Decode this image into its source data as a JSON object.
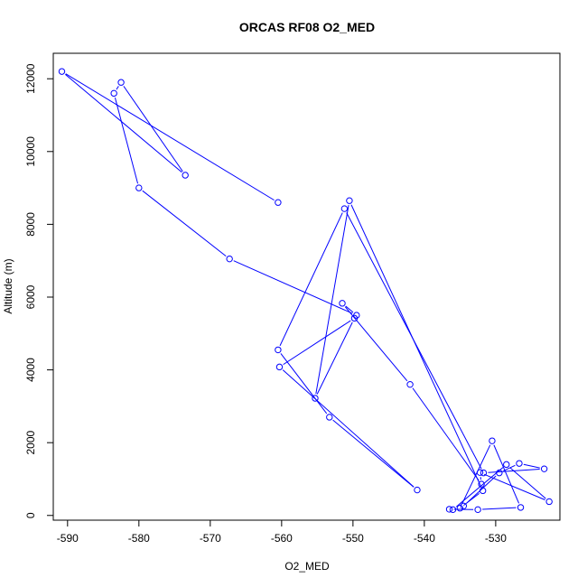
{
  "chart_data": {
    "type": "line",
    "title": "ORCAS RF08 O2_MED",
    "xlabel": "O2_MED",
    "ylabel": "Altitude (m)",
    "xlim": [
      -592,
      -521
    ],
    "ylim": [
      -130,
      12700
    ],
    "x_ticks": [
      -590,
      -580,
      -570,
      -560,
      -550,
      -540,
      -530
    ],
    "y_ticks": [
      0,
      2000,
      4000,
      6000,
      8000,
      10000,
      12000
    ],
    "x_tick_labels": [
      "-590",
      "-580",
      "-570",
      "-560",
      "-550",
      "-540",
      "-530"
    ],
    "y_tick_labels": [
      "0",
      "2000",
      "4000",
      "6000",
      "8000",
      "10000",
      "12000"
    ],
    "grid": false,
    "series_color": "#0000ff",
    "series": [
      {
        "x": [
          -560.5,
          -590.8,
          -573.5,
          -582.5,
          -583.5,
          -580,
          -567.3,
          -549.5,
          -551.5,
          -542,
          -532,
          -532.2,
          -522.5,
          -528.5,
          -536,
          -536.5,
          -532.5,
          -526.5,
          -530.5,
          -535,
          -531.8,
          -550.5,
          -555.3,
          -549.8,
          -560.3,
          -541,
          -553.3,
          -560.5,
          -551.2,
          -531.7,
          -523.2,
          -526.7,
          -529.5,
          -534.5
        ],
        "y": [
          8600,
          12200,
          9350,
          11900,
          11600,
          9000,
          7050,
          5500,
          5830,
          3600,
          860,
          1180,
          380,
          1400,
          160,
          170,
          160,
          220,
          2050,
          200,
          680,
          8650,
          3220,
          5420,
          4080,
          700,
          2700,
          4550,
          8430,
          1170,
          1280,
          1430,
          1170,
          260
        ]
      }
    ]
  }
}
